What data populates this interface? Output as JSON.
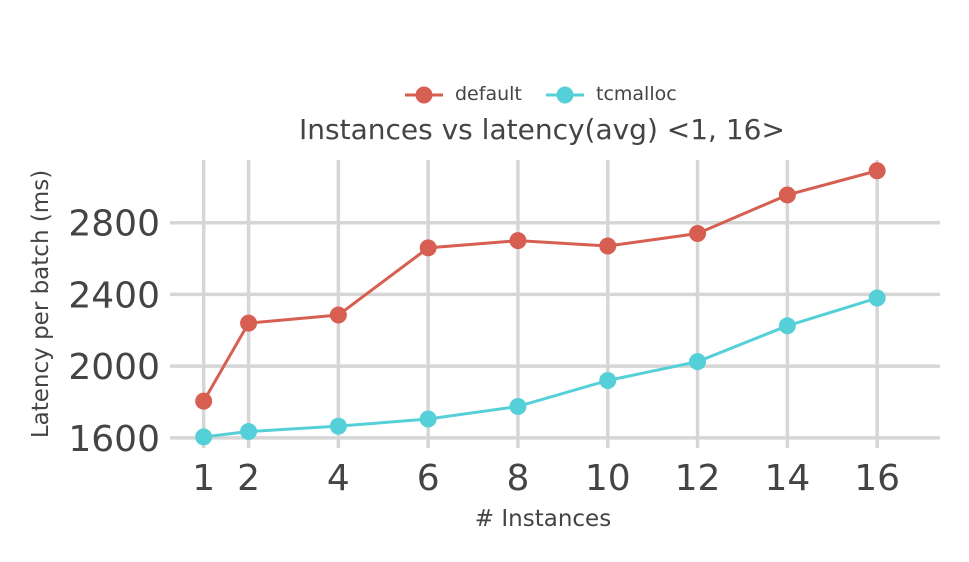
{
  "chart_data": {
    "type": "line",
    "title": "Instances vs latency(avg) <1, 16>",
    "xlabel": "# Instances",
    "ylabel": "Latency per batch (ms)",
    "x": [
      1,
      2,
      4,
      6,
      8,
      10,
      12,
      14,
      16
    ],
    "x_ticks": [
      "1",
      "2",
      "4",
      "6",
      "8",
      "10",
      "12",
      "14",
      "16"
    ],
    "y_ticks": [
      1600,
      2000,
      2400,
      2800
    ],
    "y_tick_labels": [
      "1600",
      "2000",
      "2400",
      "2800"
    ],
    "xlim": [
      0.25,
      17.4
    ],
    "ylim": [
      1560,
      3150
    ],
    "grid": true,
    "legend_position": "top-center",
    "series": [
      {
        "name": "default",
        "color": "#d65f52",
        "values": [
          1805,
          2240,
          2285,
          2660,
          2700,
          2670,
          2740,
          2955,
          3090
        ]
      },
      {
        "name": "tcmalloc",
        "color": "#56d0d8",
        "values": [
          1605,
          1635,
          1665,
          1705,
          1775,
          1920,
          2025,
          2225,
          2380
        ]
      }
    ]
  }
}
